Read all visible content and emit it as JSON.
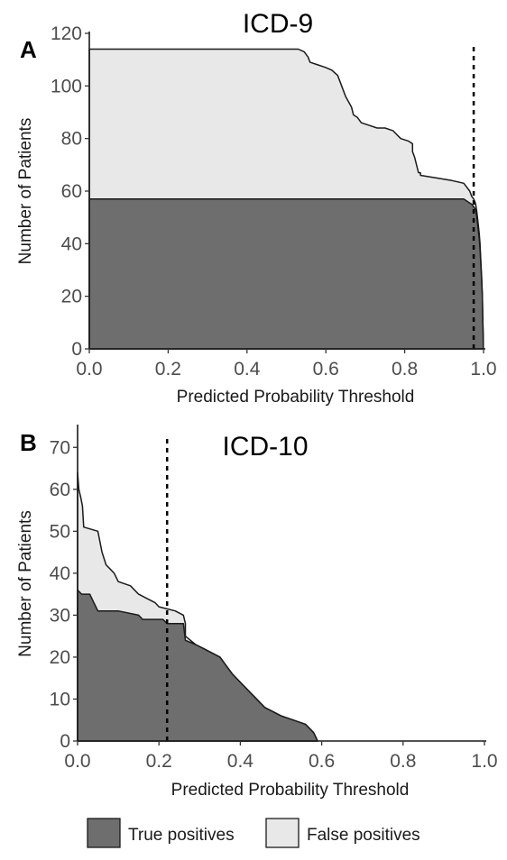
{
  "colors": {
    "true_positives": "#6e6e6e",
    "false_positives": "#e8e8e8",
    "outline": "#1a1a1a"
  },
  "legend": {
    "items": [
      {
        "label": "True positives",
        "color": "#6e6e6e"
      },
      {
        "label": "False positives",
        "color": "#e8e8e8"
      }
    ]
  },
  "chart_data": [
    {
      "type": "area",
      "panel_letter": "A",
      "title": "ICD-9",
      "xlabel": "Predicted Probability Threshold",
      "ylabel": "Number of Patients",
      "xlim": [
        0,
        1
      ],
      "ylim": [
        0,
        120
      ],
      "xticks": [
        0.0,
        0.2,
        0.4,
        0.6,
        0.8,
        1.0
      ],
      "xtick_labels": [
        "0.0",
        "0.2",
        "0.4",
        "0.6",
        "0.8",
        "1.0"
      ],
      "yticks": [
        0,
        20,
        40,
        60,
        80,
        100,
        120
      ],
      "ytick_labels": [
        "0",
        "20",
        "40",
        "60",
        "80",
        "100",
        "120"
      ],
      "threshold": 0.975,
      "grid": false,
      "series": [
        {
          "name": "False positives",
          "color": "#e8e8e8",
          "points": [
            [
              0.0,
              114
            ],
            [
              0.53,
              114
            ],
            [
              0.545,
              113
            ],
            [
              0.555,
              111
            ],
            [
              0.56,
              109
            ],
            [
              0.58,
              108
            ],
            [
              0.6,
              107
            ],
            [
              0.615,
              106
            ],
            [
              0.63,
              104
            ],
            [
              0.64,
              100
            ],
            [
              0.65,
              96
            ],
            [
              0.665,
              92
            ],
            [
              0.67,
              89
            ],
            [
              0.68,
              88
            ],
            [
              0.69,
              86
            ],
            [
              0.71,
              85
            ],
            [
              0.73,
              84
            ],
            [
              0.75,
              84
            ],
            [
              0.77,
              83
            ],
            [
              0.79,
              80
            ],
            [
              0.81,
              79
            ],
            [
              0.82,
              78
            ],
            [
              0.82,
              75
            ],
            [
              0.825,
              73
            ],
            [
              0.83,
              70
            ],
            [
              0.835,
              67
            ],
            [
              0.84,
              67
            ],
            [
              0.84,
              66
            ],
            [
              0.88,
              65
            ],
            [
              0.92,
              64
            ],
            [
              0.95,
              63
            ],
            [
              0.965,
              60
            ],
            [
              0.97,
              58
            ],
            [
              0.975,
              57
            ],
            [
              0.978,
              56
            ],
            [
              0.98,
              55
            ],
            [
              0.983,
              52
            ],
            [
              0.986,
              48
            ],
            [
              0.989,
              44
            ],
            [
              0.991,
              40
            ],
            [
              0.993,
              34
            ],
            [
              0.995,
              28
            ],
            [
              0.997,
              20
            ],
            [
              0.998,
              12
            ],
            [
              0.999,
              5
            ],
            [
              0.9995,
              0
            ]
          ]
        },
        {
          "name": "True positives",
          "color": "#6e6e6e",
          "points": [
            [
              0.0,
              57
            ],
            [
              0.95,
              57
            ],
            [
              0.96,
              56
            ],
            [
              0.97,
              55
            ],
            [
              0.975,
              54
            ],
            [
              0.98,
              53
            ],
            [
              0.983,
              50
            ],
            [
              0.986,
              46
            ],
            [
              0.989,
              42
            ],
            [
              0.991,
              38
            ],
            [
              0.993,
              33
            ],
            [
              0.995,
              27
            ],
            [
              0.997,
              20
            ],
            [
              0.998,
              12
            ],
            [
              0.999,
              5
            ],
            [
              0.9995,
              0
            ]
          ]
        }
      ]
    },
    {
      "type": "area",
      "panel_letter": "B",
      "title": "ICD-10",
      "xlabel": "Predicted Probability Threshold",
      "ylabel": "Number of Patients",
      "xlim": [
        0,
        1
      ],
      "ylim": [
        0,
        75
      ],
      "xticks": [
        0.0,
        0.2,
        0.4,
        0.6,
        0.8,
        1.0
      ],
      "xtick_labels": [
        "0.0",
        "0.2",
        "0.4",
        "0.6",
        "0.8",
        "1.0"
      ],
      "yticks": [
        0,
        10,
        20,
        30,
        40,
        50,
        60,
        70
      ],
      "ytick_labels": [
        "0",
        "10",
        "20",
        "30",
        "40",
        "50",
        "60",
        "70"
      ],
      "threshold": 0.22,
      "grid": false,
      "series": [
        {
          "name": "False positives",
          "color": "#e8e8e8",
          "points": [
            [
              0.0,
              64
            ],
            [
              0.003,
              60
            ],
            [
              0.008,
              58
            ],
            [
              0.012,
              56
            ],
            [
              0.015,
              51
            ],
            [
              0.05,
              50
            ],
            [
              0.06,
              45
            ],
            [
              0.07,
              42
            ],
            [
              0.08,
              41
            ],
            [
              0.09,
              40
            ],
            [
              0.1,
              38
            ],
            [
              0.13,
              37
            ],
            [
              0.15,
              35
            ],
            [
              0.17,
              34
            ],
            [
              0.19,
              33
            ],
            [
              0.2,
              32
            ],
            [
              0.24,
              31
            ],
            [
              0.26,
              30
            ],
            [
              0.265,
              28
            ],
            [
              0.265,
              25
            ],
            [
              0.29,
              23
            ],
            [
              0.31,
              22
            ],
            [
              0.35,
              20
            ],
            [
              0.38,
              16
            ],
            [
              0.4,
              14
            ],
            [
              0.42,
              12
            ],
            [
              0.46,
              8
            ],
            [
              0.5,
              6
            ],
            [
              0.56,
              4
            ],
            [
              0.58,
              2
            ],
            [
              0.59,
              0
            ]
          ]
        },
        {
          "name": "True positives",
          "color": "#6e6e6e",
          "points": [
            [
              0.0,
              36
            ],
            [
              0.01,
              35
            ],
            [
              0.03,
              35
            ],
            [
              0.04,
              33
            ],
            [
              0.05,
              31
            ],
            [
              0.1,
              31
            ],
            [
              0.15,
              30
            ],
            [
              0.16,
              29
            ],
            [
              0.21,
              29
            ],
            [
              0.22,
              28
            ],
            [
              0.26,
              28
            ],
            [
              0.265,
              24
            ],
            [
              0.29,
              23
            ],
            [
              0.31,
              22
            ],
            [
              0.35,
              20
            ],
            [
              0.38,
              16
            ],
            [
              0.4,
              14
            ],
            [
              0.42,
              12
            ],
            [
              0.46,
              8
            ],
            [
              0.5,
              6
            ],
            [
              0.56,
              4
            ],
            [
              0.58,
              2
            ],
            [
              0.59,
              0
            ]
          ]
        }
      ]
    }
  ]
}
